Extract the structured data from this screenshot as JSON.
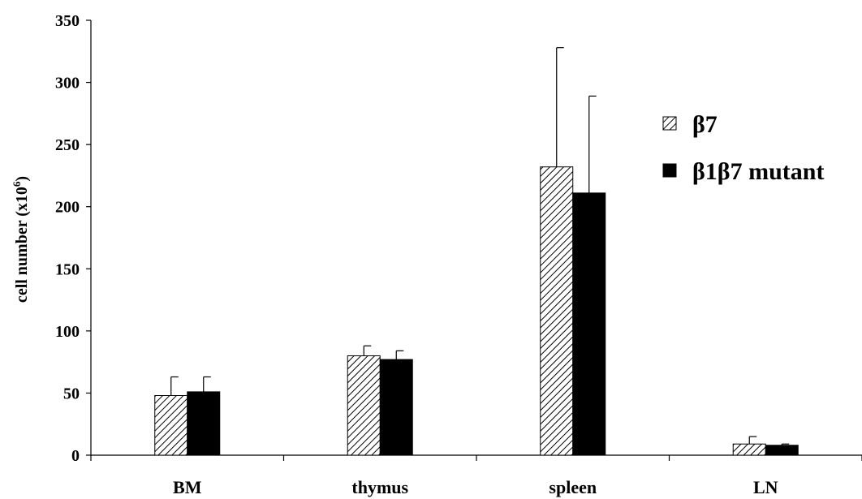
{
  "chart_data": {
    "type": "bar",
    "categories": [
      "BM",
      "thymus",
      "spleen",
      "LN"
    ],
    "series": [
      {
        "name": "β7",
        "values": [
          48,
          80,
          232,
          9
        ],
        "errors": [
          15,
          8,
          96,
          6
        ],
        "fill": "hatched",
        "color": "#000000"
      },
      {
        "name": "β1β7 mutant",
        "values": [
          51,
          77,
          211,
          8
        ],
        "errors": [
          12,
          7,
          78,
          1
        ],
        "fill": "solid",
        "color": "#000000"
      }
    ],
    "ylabel": "cell number (x10",
    "ylabel_superscript": "6",
    "ylabel_suffix": ")",
    "ylim": [
      0,
      350
    ],
    "yticks": [
      0,
      50,
      100,
      150,
      200,
      250,
      300,
      350
    ],
    "grid": false,
    "legend_position": "right"
  }
}
